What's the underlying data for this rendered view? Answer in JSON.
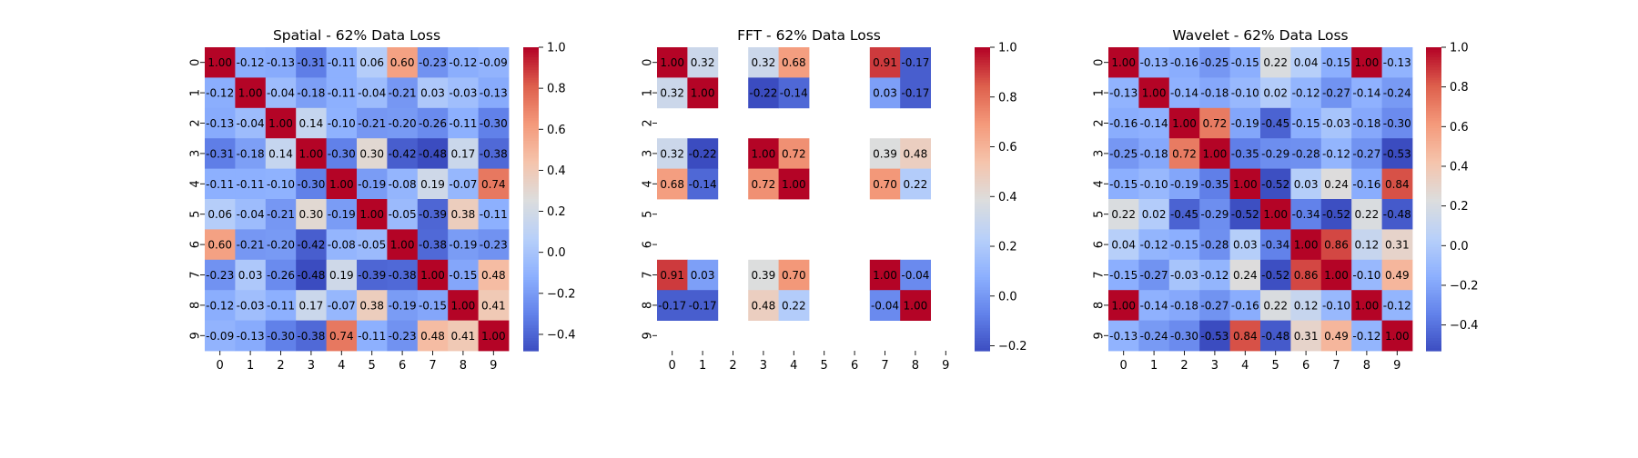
{
  "colors": {
    "scale": [
      "#3b4cc0",
      "#6282ea",
      "#8db0fe",
      "#b8d0f9",
      "#dcdddd",
      "#f5c4ac",
      "#f49a7b",
      "#de604d",
      "#b40426"
    ],
    "text_dark": "#262626",
    "text_light": "#ffffff"
  },
  "chart_data": [
    {
      "type": "heatmap",
      "title": "Spatial - 62% Data Loss",
      "x_tick_labels": [
        "0",
        "1",
        "2",
        "3",
        "4",
        "5",
        "6",
        "7",
        "8",
        "9"
      ],
      "y_tick_labels": [
        "0",
        "1",
        "2",
        "3",
        "4",
        "5",
        "6",
        "7",
        "8",
        "9"
      ],
      "vmin": -0.48,
      "vmax": 1.0,
      "colorbar_ticks": [
        -0.4,
        -0.2,
        0.0,
        0.2,
        0.4,
        0.6,
        0.8,
        1.0
      ],
      "colorbar_tick_labels": [
        "−0.4",
        "−0.2",
        "0.0",
        "0.2",
        "0.4",
        "0.6",
        "0.8",
        "1.0"
      ],
      "matrix": [
        [
          1.0,
          -0.12,
          -0.13,
          -0.31,
          -0.11,
          0.06,
          0.6,
          -0.23,
          -0.12,
          -0.09
        ],
        [
          -0.12,
          1.0,
          -0.04,
          -0.18,
          -0.11,
          -0.04,
          -0.21,
          0.03,
          -0.03,
          -0.13
        ],
        [
          -0.13,
          -0.04,
          1.0,
          0.14,
          -0.1,
          -0.21,
          -0.2,
          -0.26,
          -0.11,
          -0.3
        ],
        [
          -0.31,
          -0.18,
          0.14,
          1.0,
          -0.3,
          0.3,
          -0.42,
          -0.48,
          0.17,
          -0.38
        ],
        [
          -0.11,
          -0.11,
          -0.1,
          -0.3,
          1.0,
          -0.19,
          -0.08,
          0.19,
          -0.07,
          0.74
        ],
        [
          0.06,
          -0.04,
          -0.21,
          0.3,
          -0.19,
          1.0,
          -0.05,
          -0.39,
          0.38,
          -0.11
        ],
        [
          0.6,
          -0.21,
          -0.2,
          -0.42,
          -0.08,
          -0.05,
          1.0,
          -0.38,
          -0.19,
          -0.23
        ],
        [
          -0.23,
          0.03,
          -0.26,
          -0.48,
          0.19,
          -0.39,
          -0.38,
          1.0,
          -0.15,
          0.48
        ],
        [
          -0.12,
          -0.03,
          -0.11,
          0.17,
          -0.07,
          0.38,
          -0.19,
          -0.15,
          1.0,
          0.41
        ],
        [
          -0.09,
          -0.13,
          -0.3,
          -0.38,
          0.74,
          -0.11,
          -0.23,
          0.48,
          0.41,
          1.0
        ]
      ],
      "cell_labels": [
        [
          "1.00",
          "-0.12",
          "-0.13",
          "-0.31",
          "-0.11",
          "0.06",
          "0.60",
          "-0.23",
          "-0.12",
          "-0.09"
        ],
        [
          "-0.12",
          "1.00",
          "-0.04",
          "-0.18",
          "-0.11",
          "-0.04",
          "-0.21",
          "0.03",
          "-0.03",
          "-0.13"
        ],
        [
          "-0.13",
          "-0.04",
          "1.00",
          "0.14",
          "-0.10",
          "-0.21",
          "-0.20",
          "-0.26",
          "-0.11",
          "-0.30"
        ],
        [
          "-0.31",
          "-0.18",
          "0.14",
          "1.00",
          "-0.30",
          "0.30",
          "-0.42",
          "-0.48",
          "0.17",
          "-0.38"
        ],
        [
          "-0.11",
          "-0.11",
          "-0.10",
          "-0.30",
          "1.00",
          "-0.19",
          "-0.08",
          "0.19",
          "-0.07",
          "0.74"
        ],
        [
          "0.06",
          "-0.04",
          "-0.21",
          "0.30",
          "-0.19",
          "1.00",
          "-0.05",
          "-0.39",
          "0.38",
          "-0.11"
        ],
        [
          "0.60",
          "-0.21",
          "-0.20",
          "-0.42",
          "-0.08",
          "-0.05",
          "1.00",
          "-0.38",
          "-0.19",
          "-0.23"
        ],
        [
          "-0.23",
          "0.03",
          "-0.26",
          "-0.48",
          "0.19",
          "-0.39",
          "-0.38",
          "1.00",
          "-0.15",
          "0.48"
        ],
        [
          "-0.12",
          "-0.03",
          "-0.11",
          "0.17",
          "-0.07",
          "0.38",
          "-0.19",
          "-0.15",
          "1.00",
          "0.41"
        ],
        [
          "-0.09",
          "-0.13",
          "-0.30",
          "-0.38",
          "0.74",
          "-0.11",
          "-0.23",
          "0.48",
          "0.41",
          "1.00"
        ]
      ]
    },
    {
      "type": "heatmap",
      "title": "FFT - 62% Data Loss",
      "x_tick_labels": [
        "0",
        "1",
        "2",
        "3",
        "4",
        "5",
        "6",
        "7",
        "8",
        "9"
      ],
      "y_tick_labels": [
        "0",
        "1",
        "2",
        "3",
        "4",
        "5",
        "6",
        "7",
        "8",
        "9"
      ],
      "vmin": -0.22,
      "vmax": 1.0,
      "colorbar_ticks": [
        -0.2,
        0.0,
        0.2,
        0.4,
        0.6,
        0.8,
        1.0
      ],
      "colorbar_tick_labels": [
        "−0.2",
        "0.0",
        "0.2",
        "0.4",
        "0.6",
        "0.8",
        "1.0"
      ],
      "matrix": [
        [
          1.0,
          0.32,
          null,
          0.32,
          0.68,
          null,
          null,
          0.91,
          -0.17,
          null
        ],
        [
          0.32,
          1.0,
          null,
          -0.22,
          -0.14,
          null,
          null,
          0.03,
          -0.17,
          null
        ],
        [
          null,
          null,
          null,
          null,
          null,
          null,
          null,
          null,
          null,
          null
        ],
        [
          0.32,
          -0.22,
          null,
          1.0,
          0.72,
          null,
          null,
          0.39,
          0.48,
          null
        ],
        [
          0.68,
          -0.14,
          null,
          0.72,
          1.0,
          null,
          null,
          0.7,
          0.22,
          null
        ],
        [
          null,
          null,
          null,
          null,
          null,
          null,
          null,
          null,
          null,
          null
        ],
        [
          null,
          null,
          null,
          null,
          null,
          null,
          null,
          null,
          null,
          null
        ],
        [
          0.91,
          0.03,
          null,
          0.39,
          0.7,
          null,
          null,
          1.0,
          -0.04,
          null
        ],
        [
          -0.17,
          -0.17,
          null,
          0.48,
          0.22,
          null,
          null,
          -0.04,
          1.0,
          null
        ],
        [
          null,
          null,
          null,
          null,
          null,
          null,
          null,
          null,
          null,
          null
        ]
      ],
      "cell_labels": [
        [
          "1.00",
          "0.32",
          null,
          "0.32",
          "0.68",
          null,
          null,
          "0.91",
          "-0.17",
          null
        ],
        [
          "0.32",
          "1.00",
          null,
          "-0.22",
          "-0.14",
          null,
          null,
          "0.03",
          "-0.17",
          null
        ],
        [
          null,
          null,
          null,
          null,
          null,
          null,
          null,
          null,
          null,
          null
        ],
        [
          "0.32",
          "-0.22",
          null,
          "1.00",
          "0.72",
          null,
          null,
          "0.39",
          "0.48",
          null
        ],
        [
          "0.68",
          "-0.14",
          null,
          "0.72",
          "1.00",
          null,
          null,
          "0.70",
          "0.22",
          null
        ],
        [
          null,
          null,
          null,
          null,
          null,
          null,
          null,
          null,
          null,
          null
        ],
        [
          null,
          null,
          null,
          null,
          null,
          null,
          null,
          null,
          null,
          null
        ],
        [
          "0.91",
          "0.03",
          null,
          "0.39",
          "0.70",
          null,
          null,
          "1.00",
          "-0.04",
          null
        ],
        [
          "-0.17",
          "-0.17",
          null,
          "0.48",
          "0.22",
          null,
          null,
          "-0.04",
          "1.00",
          null
        ],
        [
          null,
          null,
          null,
          null,
          null,
          null,
          null,
          null,
          null,
          null
        ]
      ]
    },
    {
      "type": "heatmap",
      "title": "Wavelet - 62% Data Loss",
      "x_tick_labels": [
        "0",
        "1",
        "2",
        "3",
        "4",
        "5",
        "6",
        "7",
        "8",
        "9"
      ],
      "y_tick_labels": [
        "0",
        "1",
        "2",
        "3",
        "4",
        "5",
        "6",
        "7",
        "8",
        "9"
      ],
      "vmin": -0.53,
      "vmax": 1.0,
      "colorbar_ticks": [
        -0.4,
        -0.2,
        0.0,
        0.2,
        0.4,
        0.6,
        0.8,
        1.0
      ],
      "colorbar_tick_labels": [
        "−0.4",
        "−0.2",
        "0.0",
        "0.2",
        "0.4",
        "0.6",
        "0.8",
        "1.0"
      ],
      "matrix": [
        [
          1.0,
          -0.13,
          -0.16,
          -0.25,
          -0.15,
          0.22,
          0.04,
          -0.15,
          1.0,
          -0.13
        ],
        [
          -0.13,
          1.0,
          -0.14,
          -0.18,
          -0.1,
          0.02,
          -0.12,
          -0.27,
          -0.14,
          -0.24
        ],
        [
          -0.16,
          -0.14,
          1.0,
          0.72,
          -0.19,
          -0.45,
          -0.15,
          -0.03,
          -0.18,
          -0.3
        ],
        [
          -0.25,
          -0.18,
          0.72,
          1.0,
          -0.35,
          -0.29,
          -0.28,
          -0.12,
          -0.27,
          -0.53
        ],
        [
          -0.15,
          -0.1,
          -0.19,
          -0.35,
          1.0,
          -0.52,
          0.03,
          0.24,
          -0.16,
          0.84
        ],
        [
          0.22,
          0.02,
          -0.45,
          -0.29,
          -0.52,
          1.0,
          -0.34,
          -0.52,
          0.22,
          -0.48
        ],
        [
          0.04,
          -0.12,
          -0.15,
          -0.28,
          0.03,
          -0.34,
          1.0,
          0.86,
          0.12,
          0.31
        ],
        [
          -0.15,
          -0.27,
          -0.03,
          -0.12,
          0.24,
          -0.52,
          0.86,
          1.0,
          -0.1,
          0.49
        ],
        [
          1.0,
          -0.14,
          -0.18,
          -0.27,
          -0.16,
          0.22,
          0.12,
          -0.1,
          1.0,
          -0.12
        ],
        [
          -0.13,
          -0.24,
          -0.3,
          -0.53,
          0.84,
          -0.48,
          0.31,
          0.49,
          -0.12,
          1.0
        ]
      ],
      "cell_labels": [
        [
          "1.00",
          "-0.13",
          "-0.16",
          "-0.25",
          "-0.15",
          "0.22",
          "0.04",
          "-0.15",
          "1.00",
          "-0.13"
        ],
        [
          "-0.13",
          "1.00",
          "-0.14",
          "-0.18",
          "-0.10",
          "0.02",
          "-0.12",
          "-0.27",
          "-0.14",
          "-0.24"
        ],
        [
          "-0.16",
          "-0.14",
          "1.00",
          "0.72",
          "-0.19",
          "-0.45",
          "-0.15",
          "-0.03",
          "-0.18",
          "-0.30"
        ],
        [
          "-0.25",
          "-0.18",
          "0.72",
          "1.00",
          "-0.35",
          "-0.29",
          "-0.28",
          "-0.12",
          "-0.27",
          "-0.53"
        ],
        [
          "-0.15",
          "-0.10",
          "-0.19",
          "-0.35",
          "1.00",
          "-0.52",
          "0.03",
          "0.24",
          "-0.16",
          "0.84"
        ],
        [
          "0.22",
          "0.02",
          "-0.45",
          "-0.29",
          "-0.52",
          "1.00",
          "-0.34",
          "-0.52",
          "0.22",
          "-0.48"
        ],
        [
          "0.04",
          "-0.12",
          "-0.15",
          "-0.28",
          "0.03",
          "-0.34",
          "1.00",
          "0.86",
          "0.12",
          "0.31"
        ],
        [
          "-0.15",
          "-0.27",
          "-0.03",
          "-0.12",
          "0.24",
          "-0.52",
          "0.86",
          "1.00",
          "-0.10",
          "0.49"
        ],
        [
          "1.00",
          "-0.14",
          "-0.18",
          "-0.27",
          "-0.16",
          "0.22",
          "0.12",
          "-0.10",
          "1.00",
          "-0.12"
        ],
        [
          "-0.13",
          "-0.24",
          "-0.30",
          "-0.53",
          "0.84",
          "-0.48",
          "0.31",
          "0.49",
          "-0.12",
          "1.00"
        ]
      ]
    }
  ]
}
